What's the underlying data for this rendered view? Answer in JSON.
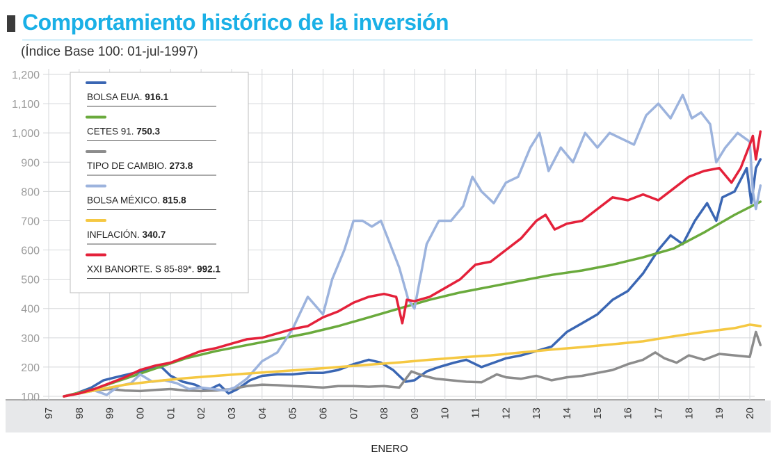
{
  "chart_data": {
    "type": "line",
    "title": "Comportamiento histórico de la inversión",
    "subtitle": "(Índice Base 100: 01-jul-1997)",
    "xlabel": "ENERO",
    "ylabel": "",
    "ylim": [
      100,
      1200
    ],
    "yticks": [
      100,
      200,
      300,
      400,
      500,
      600,
      700,
      800,
      900,
      1000,
      1100,
      1200
    ],
    "ytick_labels": [
      "100",
      "200",
      "300",
      "400",
      "500",
      "600",
      "700",
      "800",
      "900",
      "1,000",
      "1,100",
      "1,200"
    ],
    "xlim": [
      1997,
      2020.5
    ],
    "xticks": [
      1997,
      1998,
      1999,
      2000,
      2001,
      2002,
      2003,
      2004,
      2005,
      2006,
      2007,
      2008,
      2009,
      2010,
      2011,
      2012,
      2013,
      2014,
      2015,
      2016,
      2017,
      2018,
      2019,
      2020
    ],
    "xtick_labels": [
      "97",
      "98",
      "99",
      "00",
      "01",
      "02",
      "03",
      "04",
      "05",
      "06",
      "07",
      "08",
      "09",
      "10",
      "11",
      "12",
      "13",
      "14",
      "15",
      "16",
      "17",
      "18",
      "19",
      "20"
    ],
    "grid": true,
    "legend_position": "top-left",
    "series": [
      {
        "name": "BOLSA EUA.",
        "value_label": "916.1",
        "color": "#3a66b3",
        "x": [
          1997.5,
          1997.9,
          1998.4,
          1998.8,
          1999.2,
          1999.6,
          2000.0,
          2000.4,
          2000.7,
          2001.0,
          2001.4,
          2001.8,
          2002.2,
          2002.6,
          2002.9,
          2003.2,
          2003.6,
          2004.0,
          2004.5,
          2005.0,
          2005.5,
          2006.0,
          2006.5,
          2007.0,
          2007.5,
          2007.9,
          2008.3,
          2008.7,
          2009.0,
          2009.4,
          2009.8,
          2010.3,
          2010.7,
          2011.2,
          2011.6,
          2012.0,
          2012.5,
          2013.0,
          2013.5,
          2014.0,
          2014.5,
          2015.0,
          2015.5,
          2016.0,
          2016.5,
          2017.0,
          2017.4,
          2017.8,
          2018.2,
          2018.6,
          2018.9,
          2019.1,
          2019.5,
          2019.9,
          2020.05,
          2020.2,
          2020.35
        ],
        "values": [
          100,
          110,
          130,
          155,
          165,
          175,
          185,
          195,
          200,
          170,
          150,
          140,
          120,
          140,
          110,
          125,
          155,
          170,
          175,
          175,
          180,
          180,
          190,
          210,
          225,
          215,
          190,
          150,
          155,
          185,
          200,
          215,
          225,
          200,
          215,
          230,
          240,
          255,
          270,
          320,
          350,
          380,
          430,
          460,
          520,
          600,
          650,
          620,
          700,
          760,
          700,
          780,
          800,
          880,
          760,
          880,
          910
        ]
      },
      {
        "name": "CETES 91.",
        "value_label": "750.3",
        "color": "#6aaa3c",
        "x": [
          1997.5,
          1998.5,
          1999.5,
          2000.5,
          2001.5,
          2002.5,
          2003.5,
          2004.5,
          2005.5,
          2006.5,
          2007.5,
          2008.5,
          2009.5,
          2010.5,
          2011.5,
          2012.5,
          2013.5,
          2014.5,
          2015.5,
          2016.5,
          2017.5,
          2018.5,
          2019.5,
          2020.35
        ],
        "values": [
          100,
          125,
          160,
          195,
          230,
          255,
          275,
          295,
          315,
          340,
          370,
          400,
          430,
          455,
          475,
          495,
          515,
          530,
          550,
          575,
          605,
          660,
          720,
          765
        ]
      },
      {
        "name": "TIPO DE CAMBIO.",
        "value_label": "273.8",
        "color": "#8c8c8c",
        "x": [
          1997.5,
          1998.0,
          1998.5,
          1999.0,
          1999.5,
          2000.0,
          2000.5,
          2001.0,
          2001.5,
          2002.0,
          2002.5,
          2003.0,
          2003.5,
          2004.0,
          2004.5,
          2005.0,
          2005.5,
          2006.0,
          2006.5,
          2007.0,
          2007.5,
          2008.0,
          2008.5,
          2008.9,
          2009.3,
          2009.7,
          2010.2,
          2010.7,
          2011.2,
          2011.7,
          2012.0,
          2012.5,
          2013.0,
          2013.5,
          2014.0,
          2014.5,
          2015.0,
          2015.5,
          2016.0,
          2016.5,
          2016.9,
          2017.2,
          2017.6,
          2018.0,
          2018.5,
          2019.0,
          2019.5,
          2020.0,
          2020.2,
          2020.35
        ],
        "values": [
          100,
          110,
          120,
          125,
          120,
          118,
          122,
          125,
          120,
          118,
          120,
          125,
          135,
          140,
          138,
          135,
          133,
          130,
          135,
          135,
          133,
          135,
          130,
          185,
          170,
          160,
          155,
          150,
          148,
          175,
          165,
          160,
          170,
          155,
          165,
          170,
          180,
          190,
          210,
          225,
          250,
          230,
          215,
          240,
          225,
          245,
          240,
          235,
          320,
          275
        ]
      },
      {
        "name": "BOLSA MÉXICO.",
        "value_label": "815.8",
        "color": "#9cb3dd",
        "x": [
          1997.5,
          1998.0,
          1998.5,
          1998.9,
          1999.3,
          1999.7,
          2000.0,
          2000.4,
          2000.8,
          2001.2,
          2001.6,
          2002.0,
          2002.4,
          2002.8,
          2003.1,
          2003.5,
          2004.0,
          2004.5,
          2005.0,
          2005.5,
          2006.0,
          2006.3,
          2006.7,
          2007.0,
          2007.3,
          2007.6,
          2007.9,
          2008.2,
          2008.5,
          2008.8,
          2009.0,
          2009.4,
          2009.8,
          2010.2,
          2010.6,
          2010.9,
          2011.2,
          2011.6,
          2012.0,
          2012.4,
          2012.8,
          2013.1,
          2013.4,
          2013.8,
          2014.2,
          2014.6,
          2015.0,
          2015.4,
          2015.8,
          2016.2,
          2016.6,
          2017.0,
          2017.4,
          2017.8,
          2018.1,
          2018.4,
          2018.7,
          2018.9,
          2019.2,
          2019.6,
          2020.0,
          2020.1,
          2020.2,
          2020.35
        ],
        "values": [
          100,
          110,
          120,
          105,
          135,
          145,
          175,
          150,
          155,
          145,
          125,
          130,
          125,
          120,
          130,
          160,
          220,
          250,
          330,
          440,
          380,
          500,
          600,
          700,
          700,
          680,
          700,
          620,
          540,
          430,
          400,
          620,
          700,
          700,
          750,
          850,
          800,
          760,
          830,
          850,
          950,
          1000,
          870,
          950,
          900,
          1000,
          950,
          1000,
          980,
          960,
          1060,
          1100,
          1050,
          1130,
          1050,
          1070,
          1030,
          900,
          950,
          1000,
          970,
          800,
          740,
          820
        ]
      },
      {
        "name": "INFLACIÓN.",
        "value_label": "340.7",
        "color": "#f5c842",
        "x": [
          1997.5,
          1998.5,
          1999.5,
          2000.5,
          2001.5,
          2002.5,
          2003.5,
          2004.5,
          2005.5,
          2006.5,
          2007.5,
          2008.5,
          2009.5,
          2010.5,
          2011.5,
          2012.5,
          2013.5,
          2014.5,
          2015.5,
          2016.5,
          2017.5,
          2018.5,
          2019.5,
          2020.0,
          2020.35
        ],
        "values": [
          100,
          120,
          140,
          152,
          162,
          170,
          178,
          185,
          192,
          200,
          208,
          216,
          225,
          233,
          240,
          250,
          260,
          268,
          278,
          288,
          305,
          320,
          333,
          345,
          340
        ]
      },
      {
        "name": "XXI BANORTE. S 85-89*.",
        "value_label": "992.1",
        "color": "#e4213a",
        "x": [
          1997.5,
          1998.0,
          1998.5,
          1999.0,
          1999.5,
          2000.0,
          2000.5,
          2001.0,
          2001.5,
          2002.0,
          2002.5,
          2003.0,
          2003.5,
          2004.0,
          2004.5,
          2005.0,
          2005.5,
          2006.0,
          2006.5,
          2007.0,
          2007.5,
          2008.0,
          2008.4,
          2008.6,
          2008.75,
          2009.0,
          2009.5,
          2010.0,
          2010.5,
          2011.0,
          2011.5,
          2012.0,
          2012.5,
          2013.0,
          2013.3,
          2013.6,
          2014.0,
          2014.5,
          2015.0,
          2015.5,
          2016.0,
          2016.5,
          2017.0,
          2017.5,
          2018.0,
          2018.5,
          2019.0,
          2019.4,
          2019.7,
          2020.0,
          2020.1,
          2020.2,
          2020.35
        ],
        "values": [
          100,
          110,
          125,
          145,
          165,
          190,
          205,
          215,
          235,
          255,
          265,
          280,
          295,
          300,
          315,
          330,
          340,
          370,
          390,
          420,
          440,
          450,
          440,
          350,
          430,
          425,
          440,
          470,
          500,
          550,
          560,
          600,
          640,
          700,
          720,
          670,
          690,
          700,
          740,
          780,
          770,
          790,
          770,
          810,
          850,
          870,
          880,
          830,
          880,
          960,
          990,
          910,
          1005
        ]
      }
    ]
  }
}
